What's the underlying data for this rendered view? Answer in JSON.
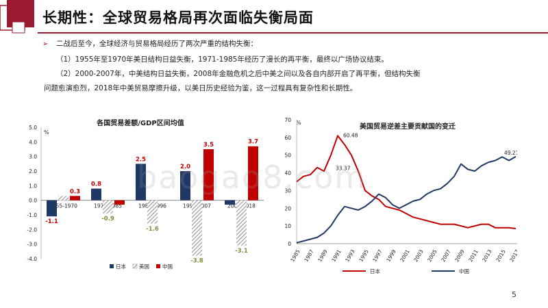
{
  "slide": {
    "title": "长期性：全球贸易格局再次面临失衡局面",
    "bullet_intro": "二战后至今，全球经济与贸易格局经历了两次严重的结构失衡：",
    "point1": "（1）1955年至1970年美日结构日益失衡，1971-1985年经历了漫长的再平衡，最终以广场协议结束。",
    "point2_line1": "（2）2000-2007年，中美结构日益失衡，2008年金融危机之后中美之间以及各自内部开启了再平衡，但结构失衡",
    "point2_line2": "问题愈演愈烈，2018年中美贸易摩擦升级，以美日历史经验为鉴，这一过程具有复杂性和长期性。",
    "page_number": "5",
    "watermark": "baogao8.com",
    "accent_color": "#9b1b30"
  },
  "chart_data": [
    {
      "type": "bar",
      "title": "各国贸易差额/GDP区间均值",
      "unit": "%",
      "ylim": [
        -4.0,
        5.0
      ],
      "yticks": [
        "5.0",
        "4.0",
        "3.0",
        "2.0",
        "1.0",
        "0.0",
        "-1.0",
        "-2.0",
        "-3.0",
        "-4.0"
      ],
      "categories": [
        "1955-1970",
        "1971-1985",
        "1986-1996",
        "1997-2007",
        "2008-2018"
      ],
      "series": [
        {
          "name": "日本",
          "color": "#1f3864",
          "values": [
            -1.1,
            0.8,
            2.5,
            2.0,
            -0.3
          ],
          "labels": [
            "-1.1",
            "0.8",
            "2.5",
            "2.0",
            ""
          ]
        },
        {
          "name": "美国",
          "color": "#a6a6a6",
          "pattern": "hatch",
          "values": [
            0.3,
            -0.9,
            -1.6,
            -3.8,
            -3.1
          ],
          "labels": [
            "",
            "-0.9",
            "-1.6",
            "-3.8",
            "-3.1"
          ]
        },
        {
          "name": "中国",
          "color": "#c00000",
          "values": [
            0.3,
            -0.3,
            null,
            3.5,
            3.7
          ],
          "labels": [
            "0.3",
            "",
            "",
            "3.5",
            "3.7"
          ]
        }
      ],
      "label_colors": {
        "日本": "#c00000",
        "美国": "#76923c",
        "中国": "#c00000"
      },
      "legend_position": "bottom"
    },
    {
      "type": "line",
      "title": "美国贸易逆差主要贡献国的变迁",
      "unit": "%",
      "ylim": [
        0,
        70
      ],
      "yticks": [
        "0",
        "10",
        "20",
        "30",
        "40",
        "50",
        "60",
        "70"
      ],
      "xticks": [
        "1985",
        "1987",
        "1989",
        "1991",
        "1993",
        "1995",
        "1997",
        "1999",
        "2001",
        "2003",
        "2005",
        "2007",
        "2009",
        "2011",
        "2013",
        "2015",
        "2017"
      ],
      "x": [
        1985,
        1986,
        1987,
        1988,
        1989,
        1990,
        1991,
        1992,
        1993,
        1994,
        1995,
        1996,
        1997,
        1998,
        1999,
        2000,
        2001,
        2002,
        2003,
        2004,
        2005,
        2006,
        2007,
        2008,
        2009,
        2010,
        2011,
        2012,
        2013,
        2014,
        2015,
        2016,
        2017
      ],
      "series": [
        {
          "name": "日本",
          "color": "#c00000",
          "values": [
            35,
            38,
            39,
            43,
            41,
            50,
            61,
            56,
            50,
            41,
            30,
            27,
            25,
            21,
            20,
            19,
            17,
            15,
            14,
            13,
            12,
            11,
            11,
            11,
            10,
            9,
            10,
            11,
            11,
            9,
            9,
            9,
            8.5
          ]
        },
        {
          "name": "中国",
          "color": "#1f3864",
          "values": [
            0.5,
            1.5,
            2.5,
            3.5,
            6,
            10,
            16,
            21,
            20,
            19,
            21,
            24,
            28,
            26,
            22,
            20,
            22,
            24,
            25,
            28,
            30,
            31,
            34,
            38,
            45,
            42,
            41,
            44,
            46,
            47,
            49,
            47,
            49.21
          ]
        }
      ],
      "annotations": [
        "60.48",
        "33.37",
        "49.21"
      ],
      "legend_position": "bottom"
    }
  ]
}
